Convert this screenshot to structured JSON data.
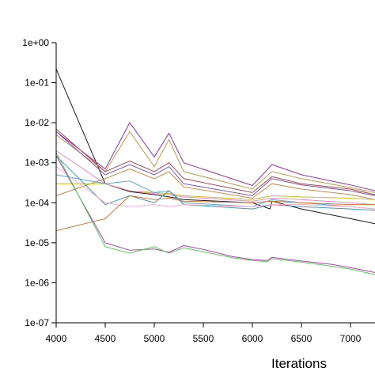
{
  "chart_data": {
    "type": "line",
    "title": "",
    "xlabel": "Iterations",
    "ylabel": "",
    "yscale": "log",
    "xlim": [
      4000,
      7250
    ],
    "ylim": [
      1e-07,
      1
    ],
    "grid": false,
    "legend": "none",
    "xticks": [
      "4000",
      "4500",
      "5000",
      "5500",
      "6000",
      "6500",
      "7000"
    ],
    "yticks": [
      "1e+00",
      "1e-01",
      "1e-02",
      "1e-03",
      "1e-04",
      "1e-05",
      "1e-06",
      "1e-07"
    ],
    "series": [
      {
        "color": "#1a1a1a",
        "x": [
          4000,
          4500,
          4750,
          5000,
          5150,
          5300,
          6000,
          6180,
          6200,
          6500,
          6800,
          7000,
          7250
        ],
        "y": [
          0.22,
          0.0003,
          0.00019,
          0.00016,
          0.00014,
          0.00012,
          0.0001,
          7e-05,
          0.00011,
          7e-05,
          5e-05,
          4e-05,
          3e-05
        ]
      },
      {
        "color": "#9933aa",
        "x": [
          4000,
          4500,
          4750,
          5000,
          5150,
          5300,
          6000,
          6200,
          6500,
          7000,
          7250
        ],
        "y": [
          0.006,
          0.0007,
          0.01,
          0.0014,
          0.0055,
          0.001,
          0.00027,
          0.0009,
          0.0005,
          0.00028,
          0.0002
        ]
      },
      {
        "color": "#bb9944",
        "x": [
          4000,
          4500,
          4750,
          5000,
          5150,
          5300,
          6000,
          6200,
          6500,
          7000,
          7250
        ],
        "y": [
          0.005,
          0.0006,
          0.006,
          0.0008,
          0.0038,
          0.0006,
          0.00022,
          0.0006,
          0.0004,
          0.00024,
          0.00018
        ]
      },
      {
        "color": "#aa4455",
        "x": [
          4000,
          4500,
          4750,
          5000,
          5150,
          5300,
          6000,
          6200,
          6500,
          7000,
          7250
        ],
        "y": [
          0.007,
          0.0006,
          0.0011,
          0.0006,
          0.001,
          0.0004,
          0.00018,
          0.00045,
          0.0003,
          0.00022,
          0.00016
        ]
      },
      {
        "color": "#7755aa",
        "x": [
          4000,
          4500,
          4750,
          5000,
          5150,
          5300,
          6000,
          6200,
          6500,
          7000,
          7250
        ],
        "y": [
          0.006,
          0.0005,
          0.0009,
          0.0005,
          0.0008,
          0.0003,
          0.00015,
          0.0004,
          0.00028,
          0.0002,
          0.00015
        ]
      },
      {
        "color": "#cc8844",
        "x": [
          4000,
          4500,
          4750,
          5000,
          5150,
          5300,
          6000,
          6200,
          6500,
          7000,
          7250
        ],
        "y": [
          0.00015,
          0.0004,
          0.0007,
          0.0004,
          0.0006,
          0.00025,
          0.00013,
          0.0003,
          0.00022,
          0.00016,
          0.00012
        ]
      },
      {
        "color": "#ccbb22",
        "x": [
          4000,
          4500,
          4750,
          5000,
          5150,
          5300,
          6000,
          6200,
          6500,
          7000,
          7250
        ],
        "y": [
          0.0003,
          0.0003,
          0.0002,
          0.00018,
          0.00017,
          0.00015,
          0.00012,
          0.00015,
          0.00014,
          0.00013,
          0.00012
        ]
      },
      {
        "color": "#ee88cc",
        "x": [
          4000,
          4500,
          4750,
          5000,
          5150,
          5300,
          6000,
          6200,
          6500,
          7000,
          7250
        ],
        "y": [
          0.002,
          0.0003,
          0.0002,
          0.00017,
          0.00016,
          0.00014,
          0.00011,
          0.00013,
          0.00012,
          0.0001,
          9e-05
        ]
      },
      {
        "color": "#55aacc",
        "x": [
          4000,
          4500,
          4750,
          5000,
          5150,
          5300,
          6000,
          6200,
          6500,
          7000,
          7250
        ],
        "y": [
          0.0005,
          0.0003,
          0.00035,
          0.00018,
          0.0002,
          0.0001,
          8e-05,
          0.00012,
          0.0001,
          8e-05,
          7e-05
        ]
      },
      {
        "color": "#4499aa",
        "x": [
          4000,
          4500,
          4750,
          5000,
          5150,
          5300,
          6000,
          6200,
          6500,
          7000,
          7250
        ],
        "y": [
          0.0015,
          9e-05,
          0.00015,
          0.0001,
          0.0002,
          9e-05,
          7e-05,
          9e-05,
          8e-05,
          7e-05,
          6.5e-05
        ]
      },
      {
        "color": "#ffaacc",
        "x": [
          4000,
          4500,
          4750,
          5000,
          5150,
          5300,
          6000,
          6200,
          6500,
          7000,
          7250
        ],
        "y": [
          0.0008,
          0.0001,
          8e-05,
          9e-05,
          8e-05,
          9e-05,
          8e-05,
          9e-05,
          9e-05,
          8e-05,
          7e-05
        ]
      },
      {
        "color": "#cc7733",
        "x": [
          4000,
          4500,
          4750,
          5000,
          5150,
          5300,
          6000,
          6200,
          6500,
          7000,
          7250
        ],
        "y": [
          2e-05,
          4e-05,
          0.00015,
          0.00012,
          0.00013,
          0.00011,
          0.0001,
          0.00011,
          0.0001,
          9e-05,
          9e-05
        ]
      },
      {
        "color": "#aa44aa",
        "x": [
          4000,
          4500,
          4750,
          5000,
          5150,
          5300,
          5500,
          5800,
          6000,
          6150,
          6200,
          6500,
          6800,
          7000,
          7250
        ],
        "y": [
          0.0015,
          1e-05,
          6.5e-06,
          7e-06,
          5.8e-06,
          8.5e-06,
          6.8e-06,
          4.5e-06,
          3.8e-06,
          3.6e-06,
          4.3e-06,
          3.5e-06,
          2.9e-06,
          2.4e-06,
          1.8e-06
        ]
      },
      {
        "color": "#55cc55",
        "x": [
          4000,
          4500,
          4750,
          5000,
          5150,
          5300,
          5500,
          5800,
          6000,
          6150,
          6200,
          6500,
          6800,
          7000,
          7250
        ],
        "y": [
          0.0018,
          8e-06,
          5.5e-06,
          8e-06,
          5.5e-06,
          7.5e-06,
          6e-06,
          4.2e-06,
          3.6e-06,
          3.4e-06,
          4e-06,
          3.3e-06,
          2.6e-06,
          2.2e-06,
          1.6e-06
        ]
      }
    ]
  }
}
